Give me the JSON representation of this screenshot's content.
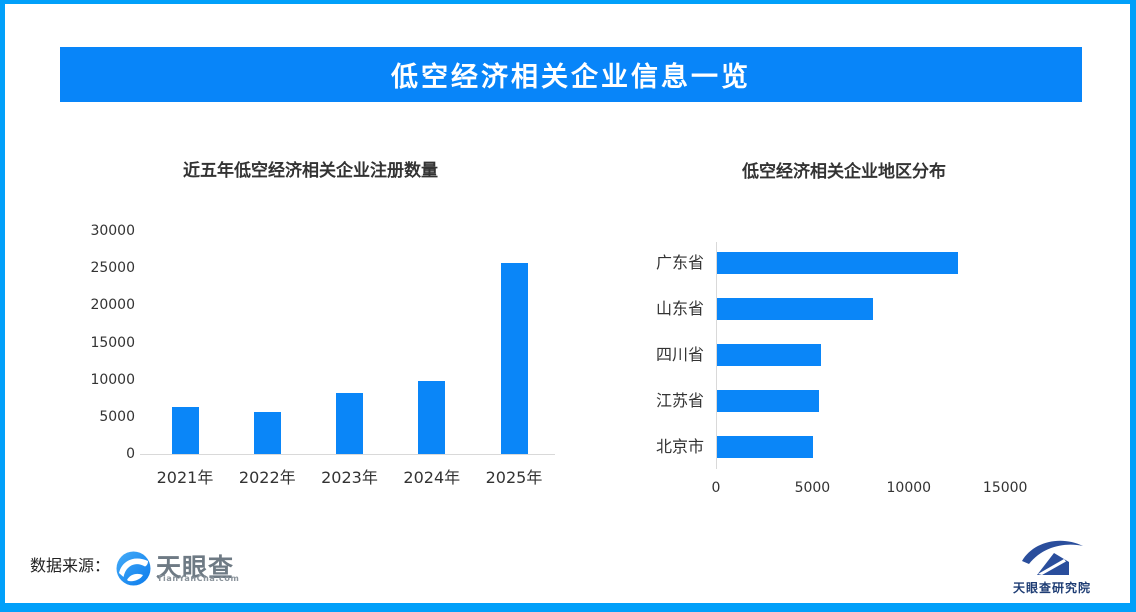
{
  "banner": {
    "title": "低空经济相关企业信息一览"
  },
  "colors": {
    "border_blue": "#01A0FA",
    "banner_blue": "#0885F9",
    "bar_blue": "#0A86F8",
    "axis_gray": "#D9D9D9",
    "text_dark": "#333333",
    "research_navy": "#1E3D74"
  },
  "footer": {
    "source_label": "数据来源：",
    "tianyancha_logo": {
      "name": "天眼查",
      "url_text": "TianYanCha.com"
    },
    "research_logo": {
      "name": "天眼查研究院"
    }
  },
  "chart_data": [
    {
      "type": "bar",
      "orientation": "vertical",
      "title": "近五年低空经济相关企业注册数量",
      "categories": [
        "2021年",
        "2022年",
        "2023年",
        "2024年",
        "2025年"
      ],
      "values": [
        6300,
        5600,
        8200,
        9800,
        25700
      ],
      "xlabel": "",
      "ylabel": "",
      "ylim": [
        0,
        30000
      ],
      "yticks": [
        0,
        5000,
        10000,
        15000,
        20000,
        25000,
        30000
      ],
      "grid": false,
      "legend": false,
      "bar_color": "#0A86F8"
    },
    {
      "type": "bar",
      "orientation": "horizontal",
      "title": "低空经济相关企业地区分布",
      "categories": [
        "广东省",
        "山东省",
        "四川省",
        "江苏省",
        "北京市"
      ],
      "values": [
        12500,
        8100,
        5400,
        5300,
        5000
      ],
      "xlabel": "",
      "ylabel": "",
      "xlim": [
        0,
        17500
      ],
      "xticks": [
        0,
        5000,
        10000,
        15000
      ],
      "grid": false,
      "legend": false,
      "bar_color": "#0A86F8"
    }
  ]
}
